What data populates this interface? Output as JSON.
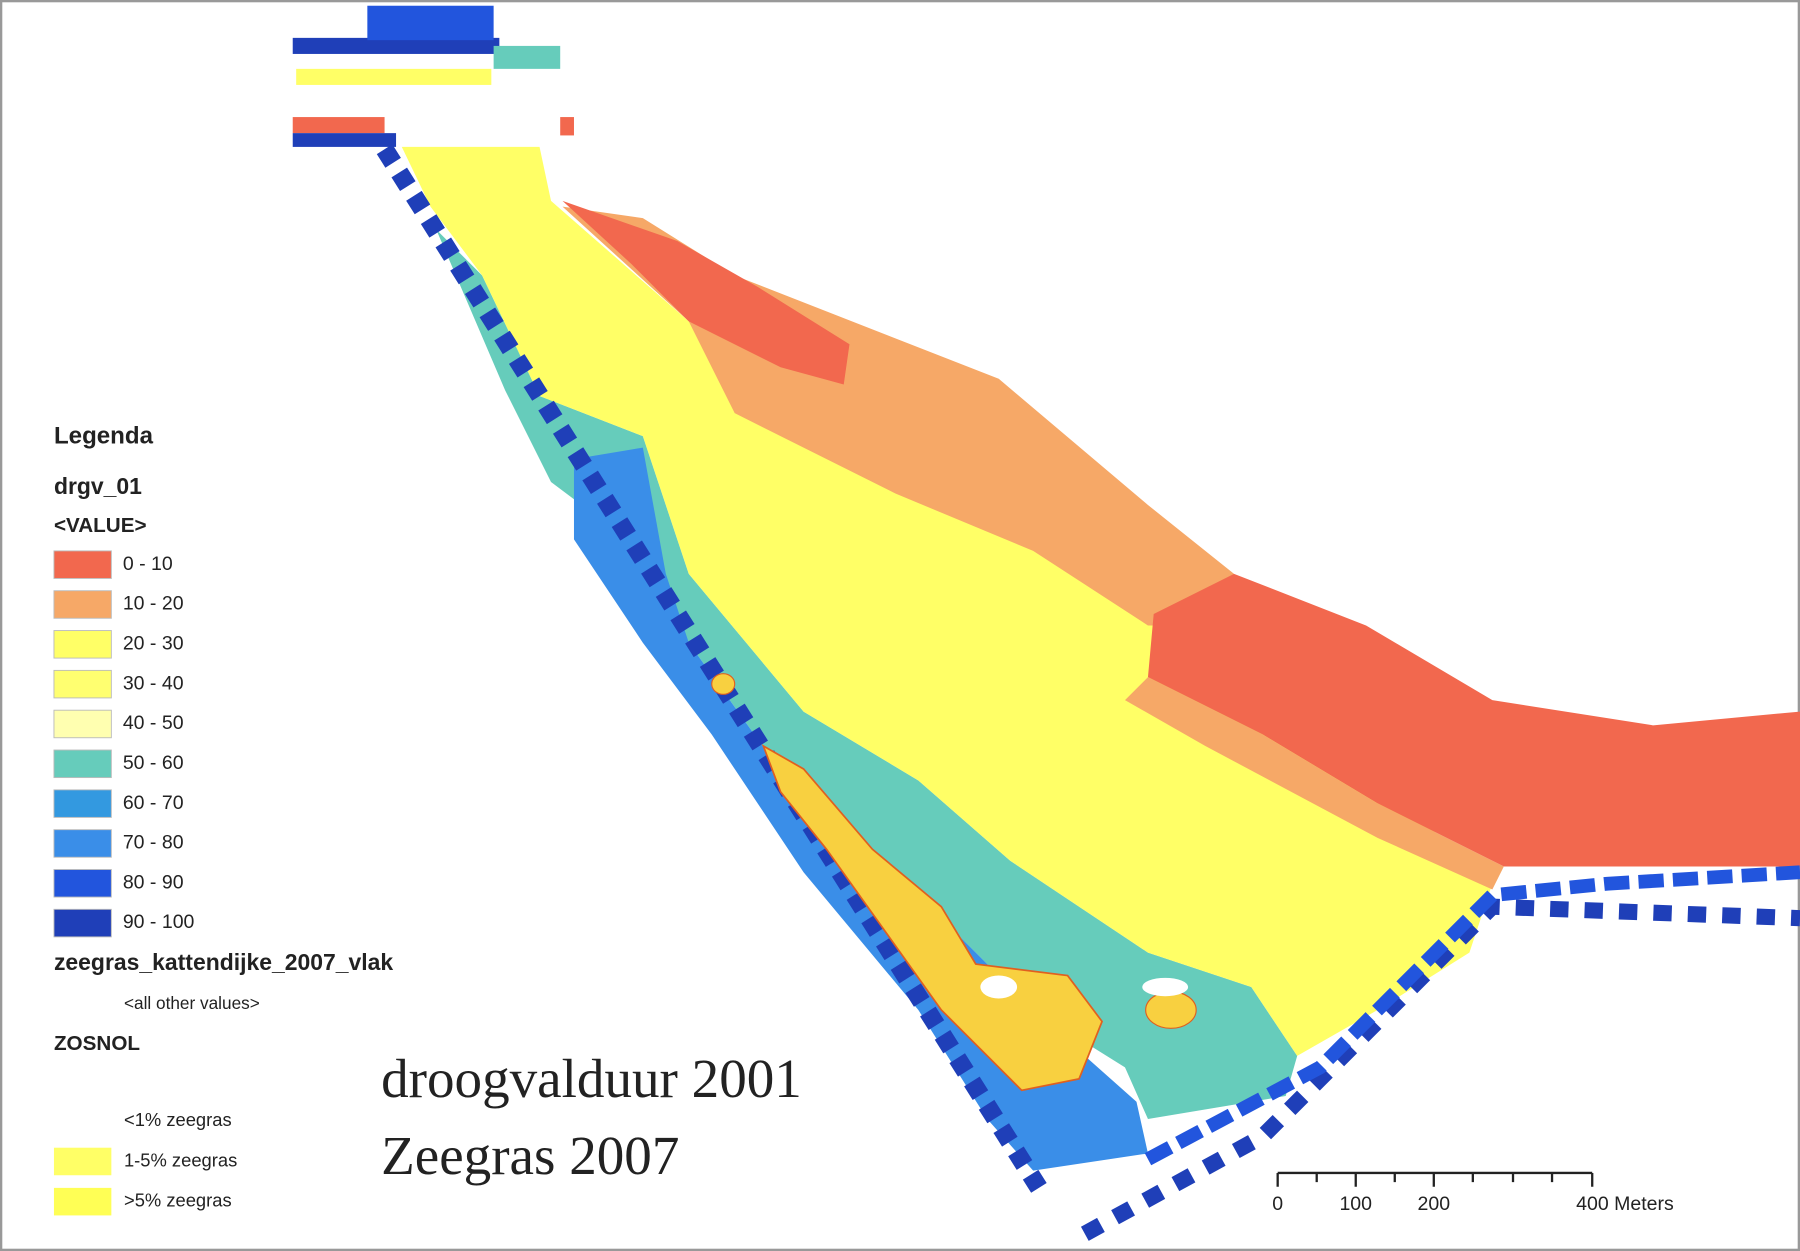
{
  "legend": {
    "title": "Legenda",
    "layer1": "drgv_01",
    "field1": "<VALUE>",
    "classes1": [
      {
        "label": "0 - 10",
        "color": "#f2684e"
      },
      {
        "label": "10 - 20",
        "color": "#f6a867"
      },
      {
        "label": "20 - 30",
        "color": "#ffff66"
      },
      {
        "label": "30 - 40",
        "color": "#ffff70"
      },
      {
        "label": "40 - 50",
        "color": "#ffffb0"
      },
      {
        "label": "50 - 60",
        "color": "#66ccbb"
      },
      {
        "label": "60 - 70",
        "color": "#3399e0"
      },
      {
        "label": "70 - 80",
        "color": "#3a8ee8"
      },
      {
        "label": "80 - 90",
        "color": "#2255dd"
      },
      {
        "label": "90 - 100",
        "color": "#1f3fb8"
      }
    ],
    "layer2": "zeegras_kattendijke_2007_vlak",
    "other_values": "<all other values>",
    "field2": "ZOSNOL",
    "classes2": [
      {
        "label": "<1% zeegras",
        "color": "#ffffff"
      },
      {
        "label": "1-5% zeegras",
        "color": "#ffff66"
      },
      {
        "label": ">5% zeegras",
        "color": "#ffff55"
      }
    ]
  },
  "title_lines": [
    "droogvalduur 2001",
    "Zeegras 2007"
  ],
  "scale_bar": {
    "labels": [
      "0",
      "100",
      "200",
      "400 Meters"
    ]
  }
}
